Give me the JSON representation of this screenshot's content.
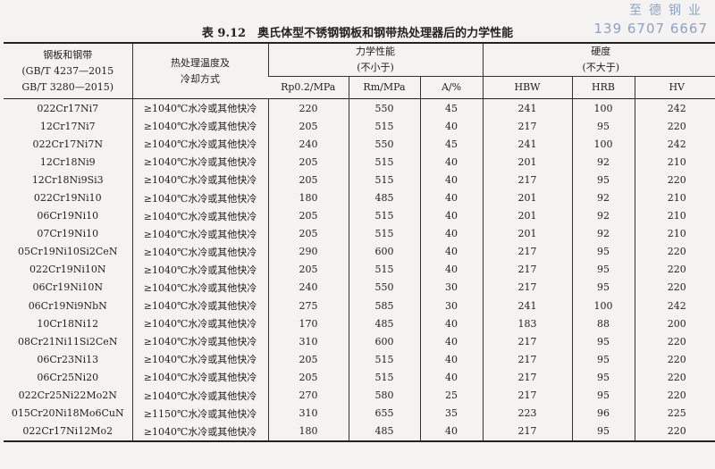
{
  "watermark": {
    "company": "至德钢业",
    "phone": "139 6707 6667"
  },
  "title": "表 9.12　奥氏体型不锈钢钢板和钢带热处理器后的力学性能",
  "header": {
    "col1": [
      "钢板和钢带",
      "(GB/T 4237—2015",
      "GB/T 3280—2015)"
    ],
    "col2": [
      "热处理温度及",
      "冷却方式"
    ],
    "mech": [
      "力学性能",
      "(不小于)"
    ],
    "hard": [
      "硬度",
      "(不大于)"
    ],
    "sub": [
      "Rp0.2/MPa",
      "Rm/MPa",
      "A/%",
      "HBW",
      "HRB",
      "HV"
    ]
  },
  "rows": [
    [
      "022Cr17Ni7",
      "≥1040℃水冷或其他快冷",
      "220",
      "550",
      "45",
      "241",
      "100",
      "242"
    ],
    [
      "12Cr17Ni7",
      "≥1040℃水冷或其他快冷",
      "205",
      "515",
      "40",
      "217",
      "95",
      "220"
    ],
    [
      "022Cr17Ni7N",
      "≥1040℃水冷或其他快冷",
      "240",
      "550",
      "45",
      "241",
      "100",
      "242"
    ],
    [
      "12Cr18Ni9",
      "≥1040℃水冷或其他快冷",
      "205",
      "515",
      "40",
      "201",
      "92",
      "210"
    ],
    [
      "12Cr18Ni9Si3",
      "≥1040℃水冷或其他快冷",
      "205",
      "515",
      "40",
      "217",
      "95",
      "220"
    ],
    [
      "022Cr19Ni10",
      "≥1040℃水冷或其他快冷",
      "180",
      "485",
      "40",
      "201",
      "92",
      "210"
    ],
    [
      "06Cr19Ni10",
      "≥1040℃水冷或其他快冷",
      "205",
      "515",
      "40",
      "201",
      "92",
      "210"
    ],
    [
      "07Cr19Ni10",
      "≥1040℃水冷或其他快冷",
      "205",
      "515",
      "40",
      "201",
      "92",
      "210"
    ],
    [
      "05Cr19Ni10Si2CeN",
      "≥1040℃水冷或其他快冷",
      "290",
      "600",
      "40",
      "217",
      "95",
      "220"
    ],
    [
      "022Cr19Ni10N",
      "≥1040℃水冷或其他快冷",
      "205",
      "515",
      "40",
      "217",
      "95",
      "220"
    ],
    [
      "06Cr19Ni10N",
      "≥1040℃水冷或其他快冷",
      "240",
      "550",
      "30",
      "217",
      "95",
      "220"
    ],
    [
      "06Cr19Ni9NbN",
      "≥1040℃水冷或其他快冷",
      "275",
      "585",
      "30",
      "241",
      "100",
      "242"
    ],
    [
      "10Cr18Ni12",
      "≥1040℃水冷或其他快冷",
      "170",
      "485",
      "40",
      "183",
      "88",
      "200"
    ],
    [
      "08Cr21Ni11Si2CeN",
      "≥1040℃水冷或其他快冷",
      "310",
      "600",
      "40",
      "217",
      "95",
      "220"
    ],
    [
      "06Cr23Ni13",
      "≥1040℃水冷或其他快冷",
      "205",
      "515",
      "40",
      "217",
      "95",
      "220"
    ],
    [
      "06Cr25Ni20",
      "≥1040℃水冷或其他快冷",
      "205",
      "515",
      "40",
      "217",
      "95",
      "220"
    ],
    [
      "022Cr25Ni22Mo2N",
      "≥1040℃水冷或其他快冷",
      "270",
      "580",
      "25",
      "217",
      "95",
      "220"
    ],
    [
      "015Cr20Ni18Mo6CuN",
      "≥1150℃水冷或其他快冷",
      "310",
      "655",
      "35",
      "223",
      "96",
      "225"
    ],
    [
      "022Cr17Ni12Mo2",
      "≥1040℃水冷或其他快冷",
      "180",
      "485",
      "40",
      "217",
      "95",
      "220"
    ]
  ]
}
